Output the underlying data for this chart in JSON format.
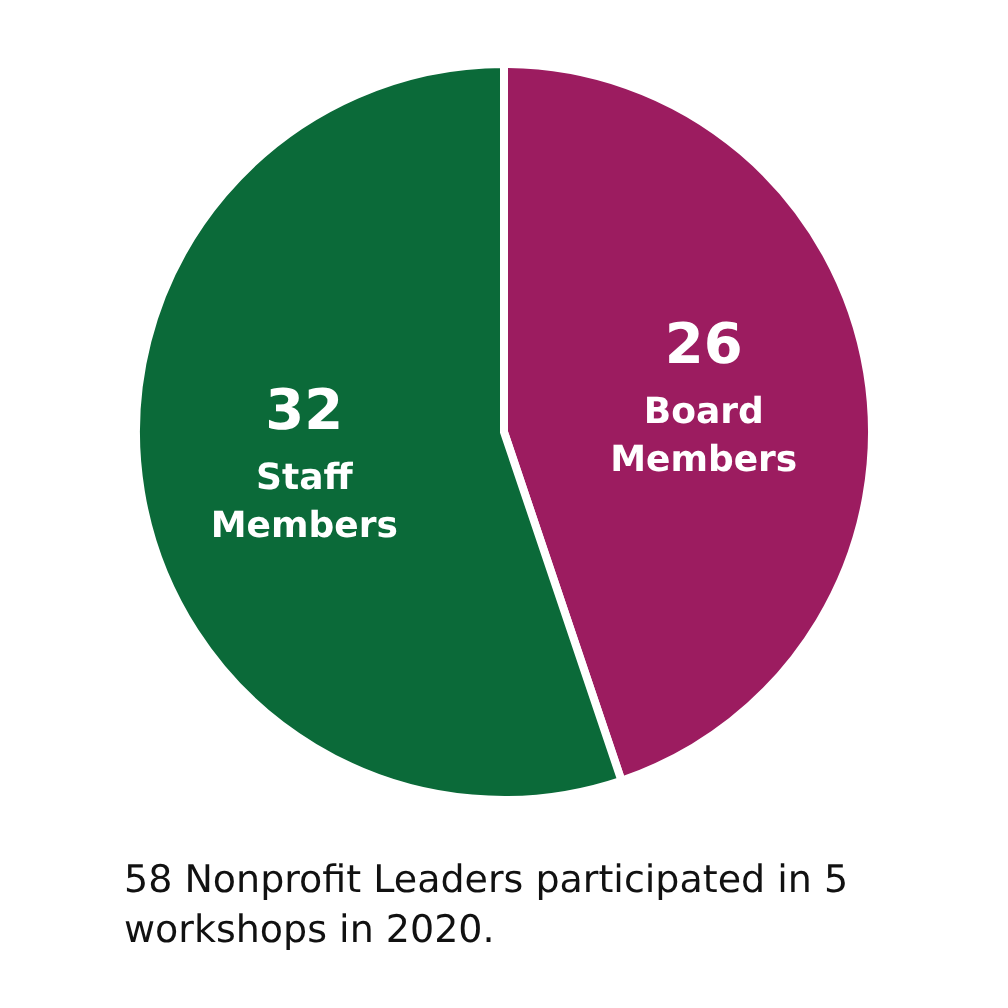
{
  "chart_data": {
    "type": "pie",
    "categories": [
      "Board Members",
      "Staff Members"
    ],
    "values": [
      26,
      32
    ],
    "colors": [
      "#9c1c60",
      "#0b6a39"
    ],
    "data_labels": true,
    "annotations": [
      "58 Nonprofit Leaders participated in 5 workshops in 2020."
    ]
  }
}
